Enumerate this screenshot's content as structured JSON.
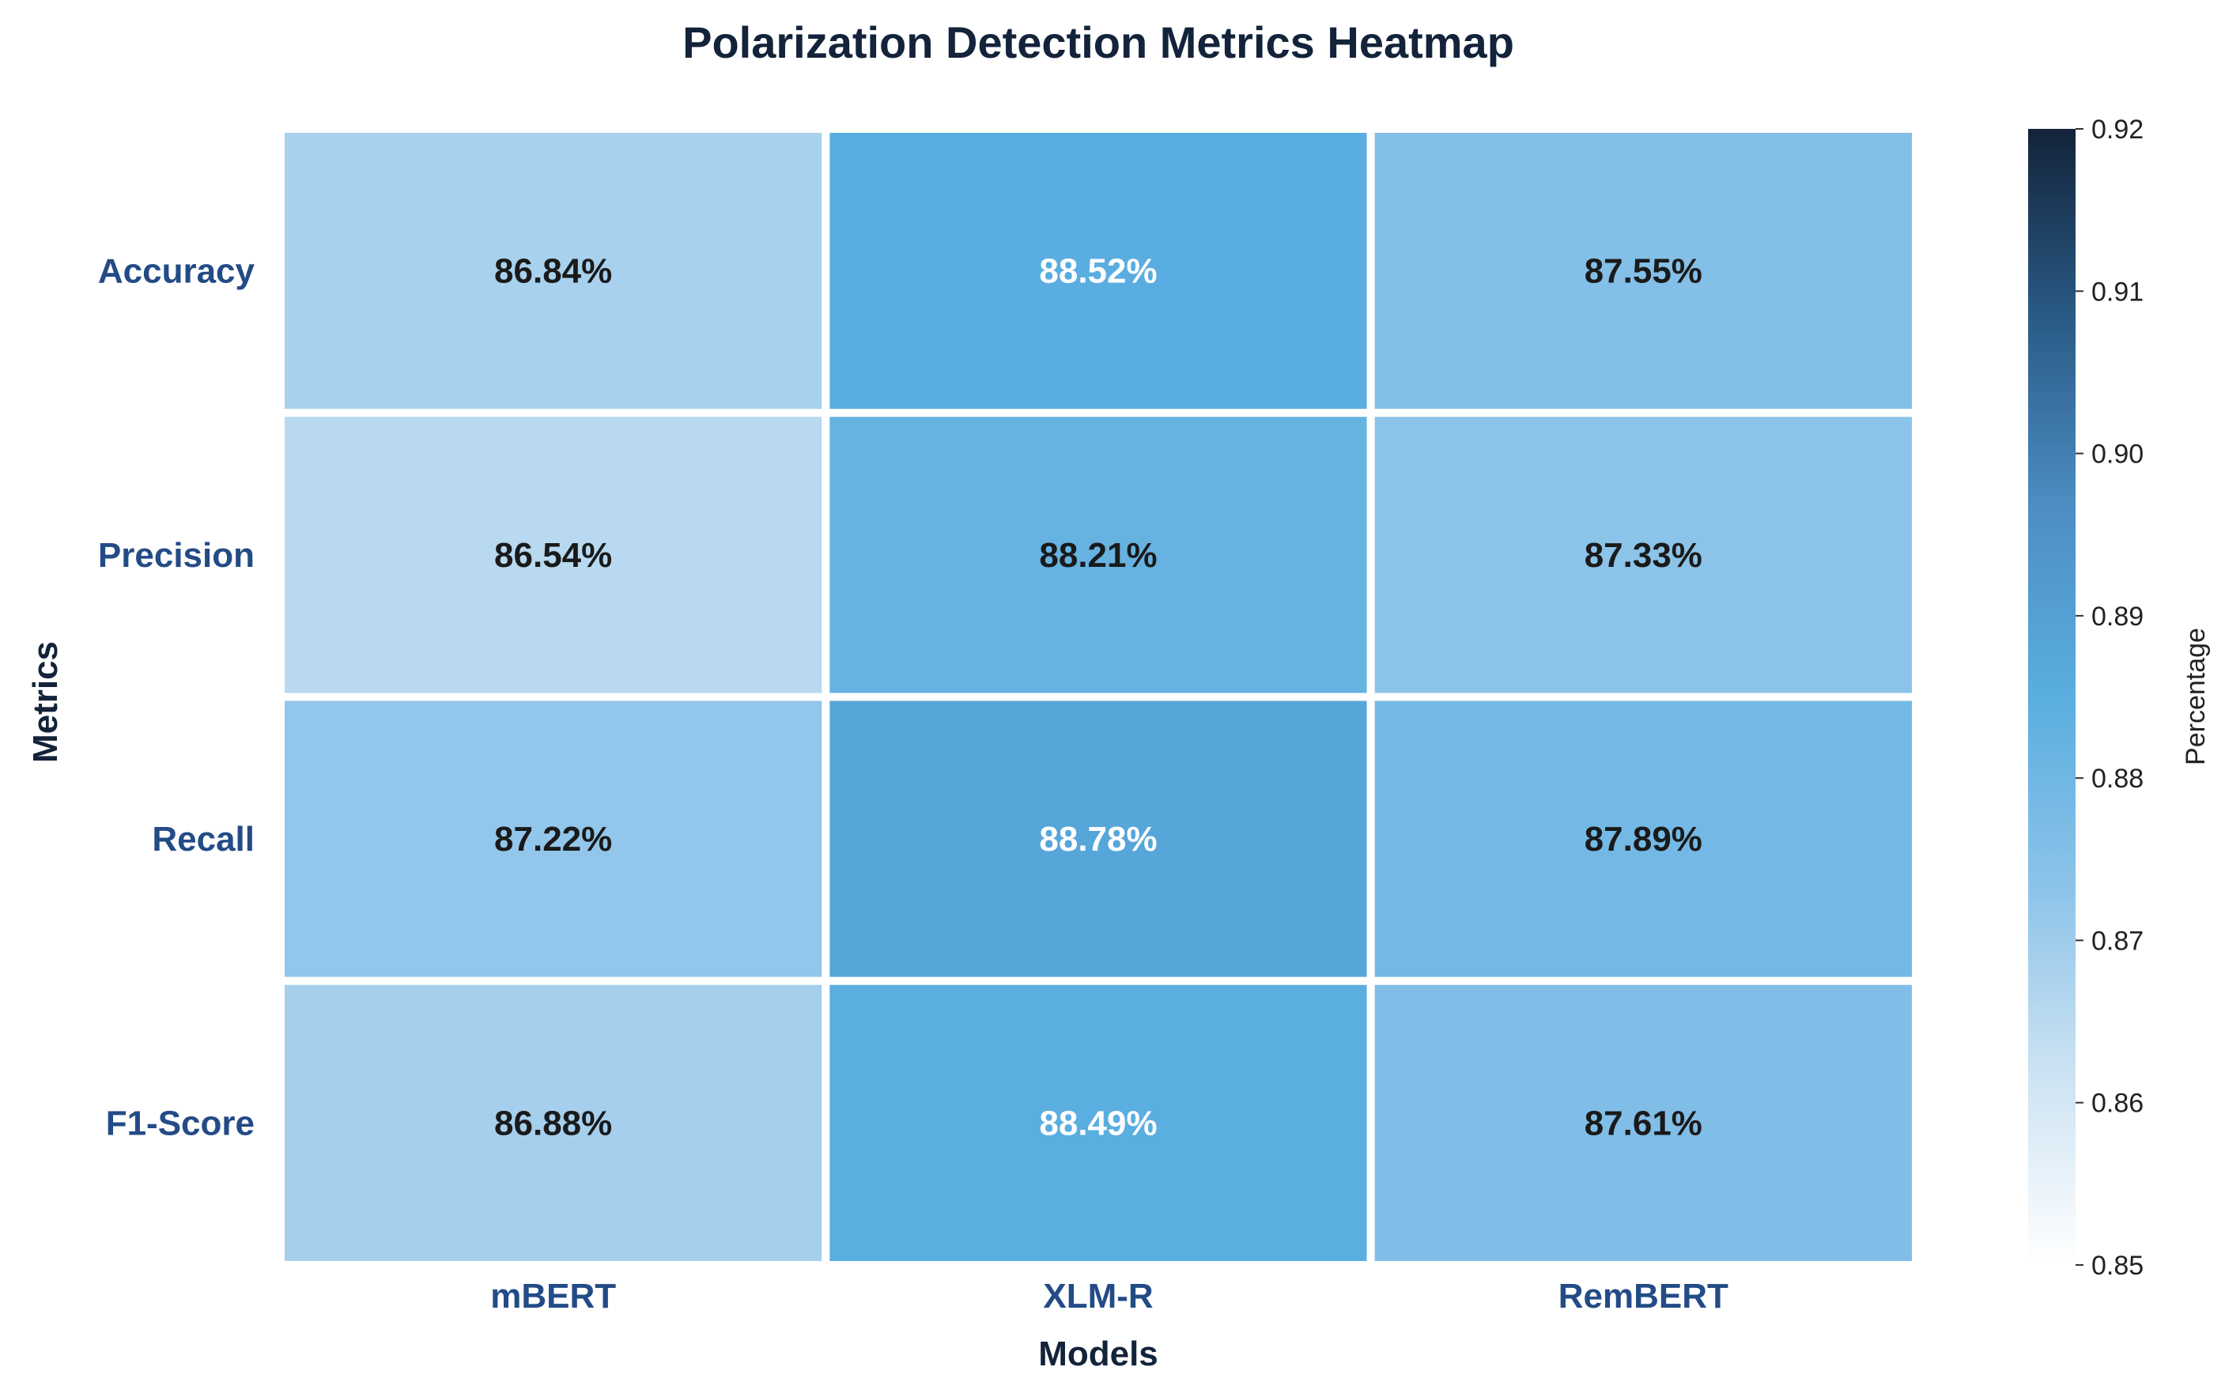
{
  "chart_data": {
    "type": "heatmap",
    "title": "Polarization Detection Metrics Heatmap",
    "xlabel": "Models",
    "ylabel": "Metrics",
    "x_categories": [
      "mBERT",
      "XLM-R",
      "RemBERT"
    ],
    "y_categories": [
      "Accuracy",
      "Precision",
      "Recall",
      "F1-Score"
    ],
    "values": [
      [
        0.8684,
        0.8852,
        0.8755
      ],
      [
        0.8654,
        0.8821,
        0.8733
      ],
      [
        0.8722,
        0.8878,
        0.8789
      ],
      [
        0.8688,
        0.8849,
        0.8761
      ]
    ],
    "cell_labels": [
      [
        "86.84%",
        "88.52%",
        "87.55%"
      ],
      [
        "86.54%",
        "88.21%",
        "87.33%"
      ],
      [
        "87.22%",
        "88.78%",
        "87.89%"
      ],
      [
        "86.88%",
        "88.49%",
        "87.61%"
      ]
    ],
    "colorbar": {
      "label": "Percentage",
      "range": [
        0.85,
        0.92
      ],
      "ticks": [
        "0.85",
        "0.86",
        "0.87",
        "0.88",
        "0.89",
        "0.90",
        "0.91",
        "0.92"
      ],
      "colorscale": [
        "#ffffff",
        "#cde3f3",
        "#8cc3e9",
        "#5aaee0",
        "#4d8ec4",
        "#2a5b86",
        "#13233a"
      ]
    },
    "text_colors": {
      "dark": "#1a1a1a",
      "light": "#ffffff"
    }
  }
}
